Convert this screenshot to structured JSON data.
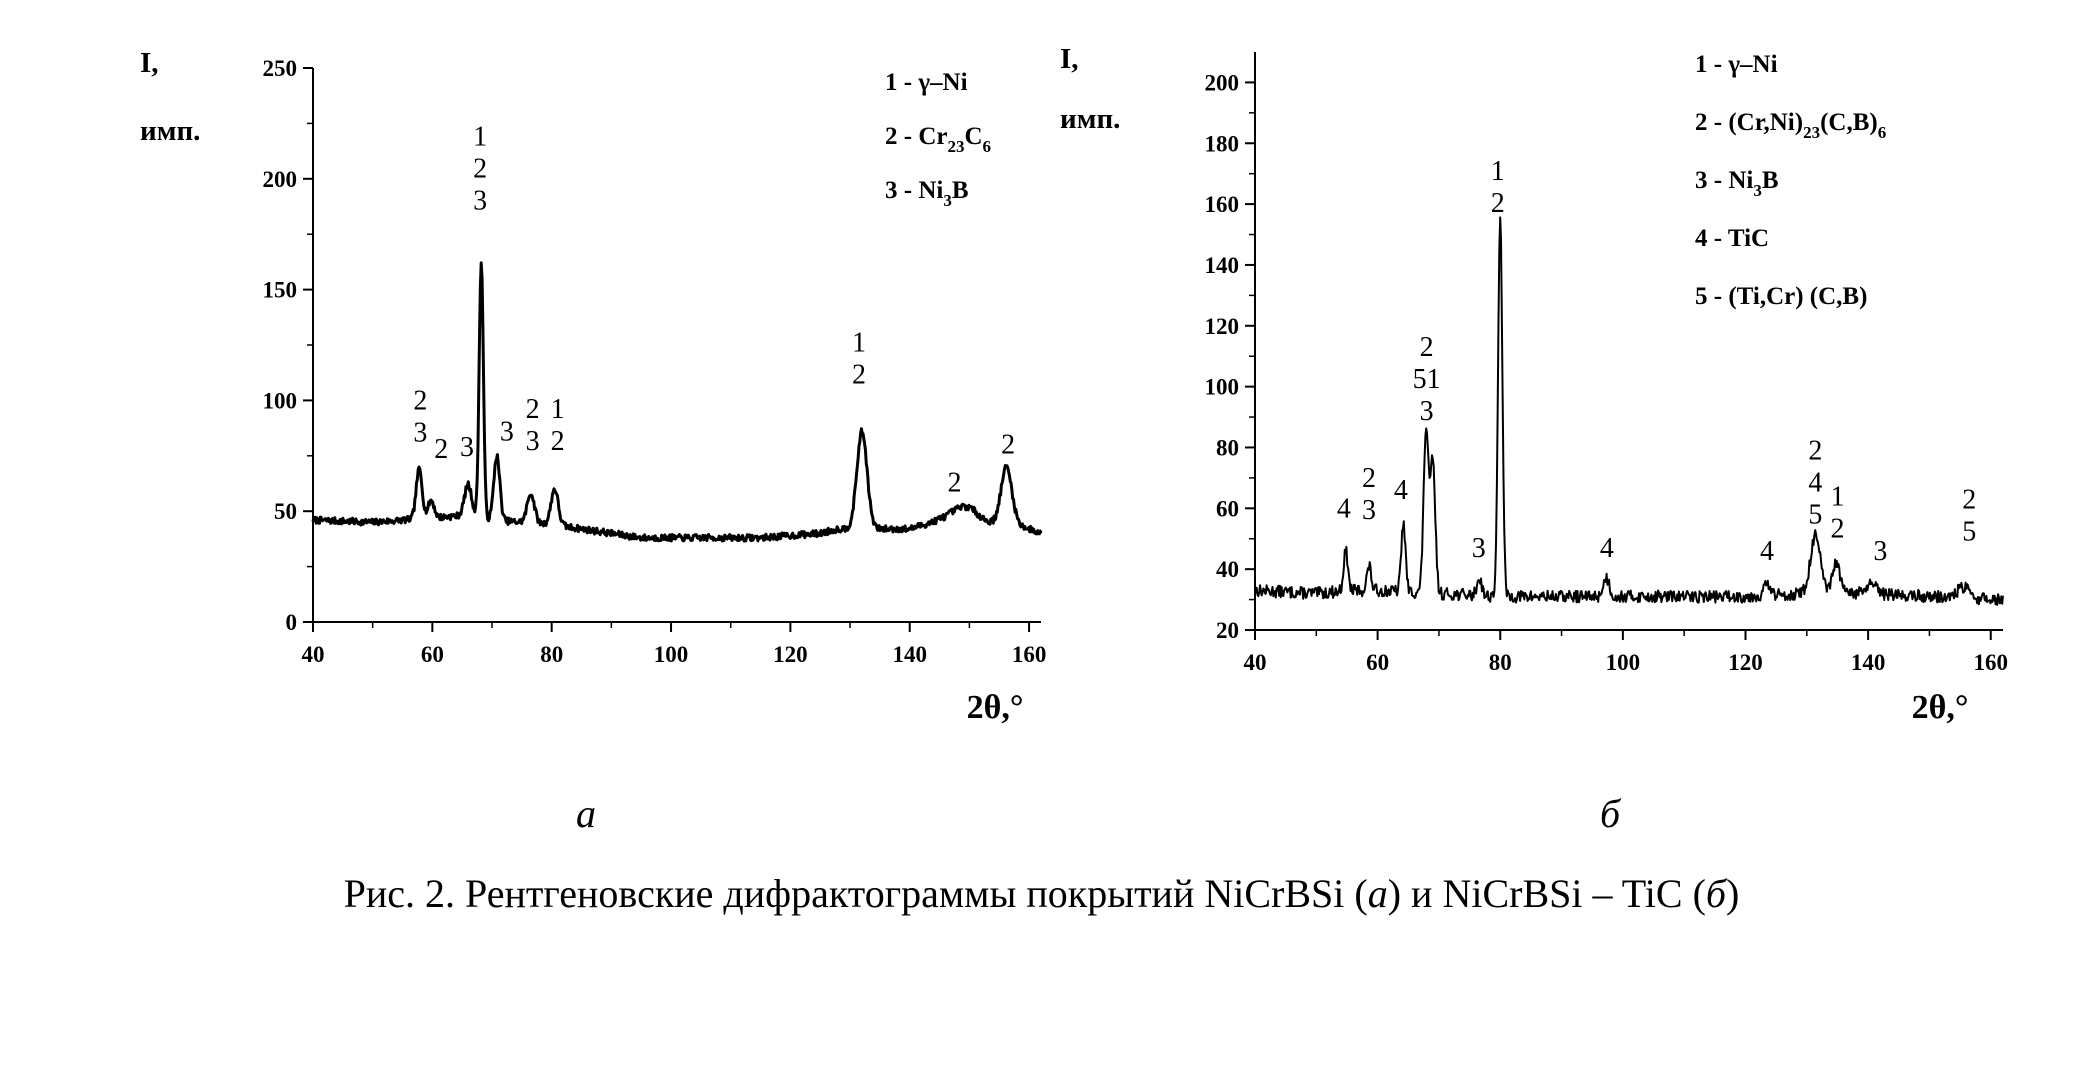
{
  "chart_data": [
    {
      "panel": "a",
      "type": "line",
      "ylabel": [
        "I,",
        "имп."
      ],
      "xlabel": "2θ,°",
      "xlim": [
        40,
        162
      ],
      "ylim": [
        0,
        250
      ],
      "xticks": [
        40,
        60,
        80,
        100,
        120,
        140,
        160
      ],
      "yticks": [
        0,
        50,
        100,
        150,
        200,
        250
      ],
      "legend": [
        {
          "num": "1",
          "text": "γ–Ni"
        },
        {
          "num": "2",
          "text": "Cr",
          "subs": [
            [
              "23",
              "C"
            ],
            [
              "6",
              ""
            ]
          ]
        },
        {
          "num": "3",
          "text": "Ni",
          "subs": [
            [
              "3",
              "B"
            ]
          ]
        }
      ],
      "legend_position": "top-right",
      "baseline": [
        [
          40,
          46
        ],
        [
          50,
          45
        ],
        [
          55,
          46
        ],
        [
          60,
          47
        ],
        [
          65,
          48
        ],
        [
          70,
          46
        ],
        [
          75,
          45
        ],
        [
          80,
          44
        ],
        [
          85,
          42
        ],
        [
          90,
          40
        ],
        [
          95,
          38
        ],
        [
          100,
          38
        ],
        [
          105,
          38
        ],
        [
          110,
          38
        ],
        [
          115,
          38
        ],
        [
          120,
          39
        ],
        [
          125,
          40
        ],
        [
          128,
          42
        ],
        [
          135,
          42
        ],
        [
          140,
          42
        ],
        [
          145,
          46
        ],
        [
          150,
          48
        ],
        [
          153,
          45
        ],
        [
          155,
          44
        ],
        [
          158,
          44
        ],
        [
          162,
          40
        ]
      ],
      "peaks": [
        {
          "x": 57.8,
          "y": 69,
          "w": 0.5
        },
        {
          "x": 59.8,
          "y": 55,
          "w": 0.5
        },
        {
          "x": 66.0,
          "y": 62,
          "w": 0.6
        },
        {
          "x": 68.2,
          "y": 162,
          "w": 0.35
        },
        {
          "x": 70.8,
          "y": 75,
          "w": 0.5
        },
        {
          "x": 76.5,
          "y": 58,
          "w": 0.6
        },
        {
          "x": 80.5,
          "y": 60,
          "w": 0.6
        },
        {
          "x": 132.0,
          "y": 86,
          "w": 0.85
        },
        {
          "x": 149.0,
          "y": 52,
          "w": 2.0
        },
        {
          "x": 156.2,
          "y": 70,
          "w": 0.9
        }
      ],
      "peak_labels": [
        {
          "x": 58.0,
          "y": 96,
          "lines": [
            "2",
            "3"
          ]
        },
        {
          "x": 61.5,
          "y": 74,
          "lines": [
            "2"
          ]
        },
        {
          "x": 65.8,
          "y": 75,
          "lines": [
            "3"
          ]
        },
        {
          "x": 68.0,
          "y": 215,
          "lines": [
            "1",
            "2",
            "3"
          ]
        },
        {
          "x": 72.5,
          "y": 82,
          "lines": [
            "3"
          ]
        },
        {
          "x": 76.8,
          "y": 92,
          "lines": [
            "2",
            "3"
          ]
        },
        {
          "x": 81.0,
          "y": 92,
          "lines": [
            "1",
            "2"
          ]
        },
        {
          "x": 131.5,
          "y": 122,
          "lines": [
            "1",
            "2"
          ]
        },
        {
          "x": 147.5,
          "y": 59,
          "lines": [
            "2"
          ]
        },
        {
          "x": 156.5,
          "y": 76,
          "lines": [
            "2"
          ]
        }
      ]
    },
    {
      "panel": "б",
      "type": "line",
      "ylabel": [
        "I,",
        "имп."
      ],
      "xlabel": "2θ,°",
      "xlim": [
        40,
        162
      ],
      "ylim": [
        20,
        210
      ],
      "xticks": [
        40,
        60,
        80,
        100,
        120,
        140,
        160
      ],
      "yticks": [
        20,
        40,
        60,
        80,
        100,
        120,
        140,
        160,
        180,
        200
      ],
      "legend": [
        {
          "num": "1",
          "text": "γ–Ni"
        },
        {
          "num": "2",
          "text": "(Cr,Ni)",
          "subs": [
            [
              "23",
              "(C,B)"
            ],
            [
              "6",
              ""
            ]
          ]
        },
        {
          "num": "3",
          "text": "Ni",
          "subs": [
            [
              "3",
              "B"
            ]
          ]
        },
        {
          "num": "4",
          "text": "TiC"
        },
        {
          "num": "5",
          "text": "(Ti,Cr) (C,B)"
        }
      ],
      "legend_position": "top-right",
      "baseline": [
        [
          40,
          33
        ],
        [
          50,
          32
        ],
        [
          55,
          33
        ],
        [
          60,
          33
        ],
        [
          70,
          32
        ],
        [
          80,
          31
        ],
        [
          90,
          31
        ],
        [
          100,
          31
        ],
        [
          110,
          31
        ],
        [
          120,
          31
        ],
        [
          130,
          32
        ],
        [
          140,
          32
        ],
        [
          150,
          31
        ],
        [
          162,
          30
        ]
      ],
      "peaks": [
        {
          "x": 54.8,
          "y": 46,
          "w": 0.35
        },
        {
          "x": 58.6,
          "y": 41,
          "w": 0.35
        },
        {
          "x": 64.2,
          "y": 55,
          "w": 0.35
        },
        {
          "x": 67.9,
          "y": 86,
          "w": 0.4
        },
        {
          "x": 69.0,
          "y": 75,
          "w": 0.4
        },
        {
          "x": 76.6,
          "y": 37,
          "w": 0.4
        },
        {
          "x": 80.0,
          "y": 155,
          "w": 0.35
        },
        {
          "x": 97.3,
          "y": 37,
          "w": 0.5
        },
        {
          "x": 123.5,
          "y": 35,
          "w": 0.5
        },
        {
          "x": 131.4,
          "y": 51,
          "w": 0.8
        },
        {
          "x": 134.8,
          "y": 42,
          "w": 0.6
        },
        {
          "x": 140.5,
          "y": 35,
          "w": 0.8
        },
        {
          "x": 155.5,
          "y": 34,
          "w": 0.9
        }
      ],
      "peak_labels": [
        {
          "x": 54.5,
          "y": 57,
          "lines": [
            "4"
          ]
        },
        {
          "x": 58.6,
          "y": 67,
          "lines": [
            "2",
            "3"
          ]
        },
        {
          "x": 63.8,
          "y": 63,
          "lines": [
            "4"
          ]
        },
        {
          "x": 68.0,
          "y": 110,
          "lines": [
            "2",
            "51",
            "3"
          ]
        },
        {
          "x": 76.5,
          "y": 44,
          "lines": [
            "3"
          ]
        },
        {
          "x": 79.6,
          "y": 168,
          "lines": [
            "1",
            "2"
          ]
        },
        {
          "x": 97.4,
          "y": 44,
          "lines": [
            "4"
          ]
        },
        {
          "x": 123.5,
          "y": 43,
          "lines": [
            "4"
          ]
        },
        {
          "x": 131.4,
          "y": 76,
          "lines": [
            "2",
            "4",
            "5"
          ]
        },
        {
          "x": 135.0,
          "y": 61,
          "lines": [
            "1",
            "2"
          ]
        },
        {
          "x": 142.0,
          "y": 43,
          "lines": [
            "3"
          ]
        },
        {
          "x": 156.5,
          "y": 60,
          "lines": [
            "2",
            "5"
          ]
        }
      ]
    }
  ],
  "panel_labels": [
    "а",
    "б"
  ],
  "caption": {
    "prefix": "Рис. 2. Рентгеновские дифрактограммы покрытий NiCrBSi (",
    "letter_a": "а",
    "middle": ") и NiCrBSi – TiC (",
    "letter_b": "б",
    "suffix": ")"
  }
}
